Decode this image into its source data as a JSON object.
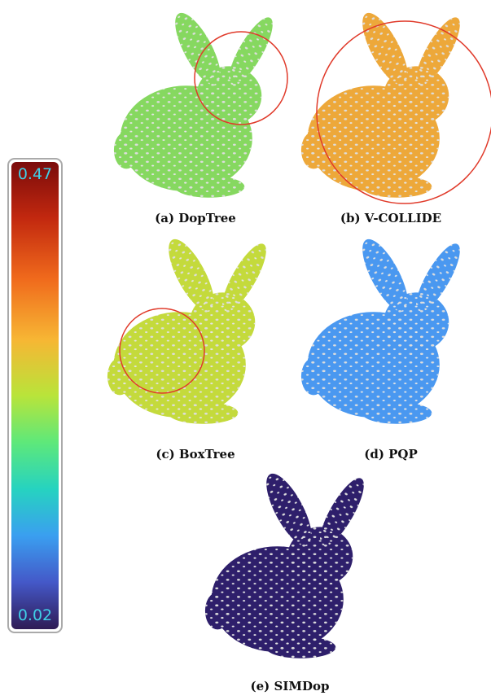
{
  "colorbar": {
    "max_label": "0.47",
    "min_label": "0.02"
  },
  "panels": [
    {
      "caption": "(a) DopTree"
    },
    {
      "caption": "(b) V-COLLIDE"
    },
    {
      "caption": "(c) BoxTree"
    },
    {
      "caption": "(d) PQP"
    },
    {
      "caption": "(e) SIMDop"
    }
  ]
}
